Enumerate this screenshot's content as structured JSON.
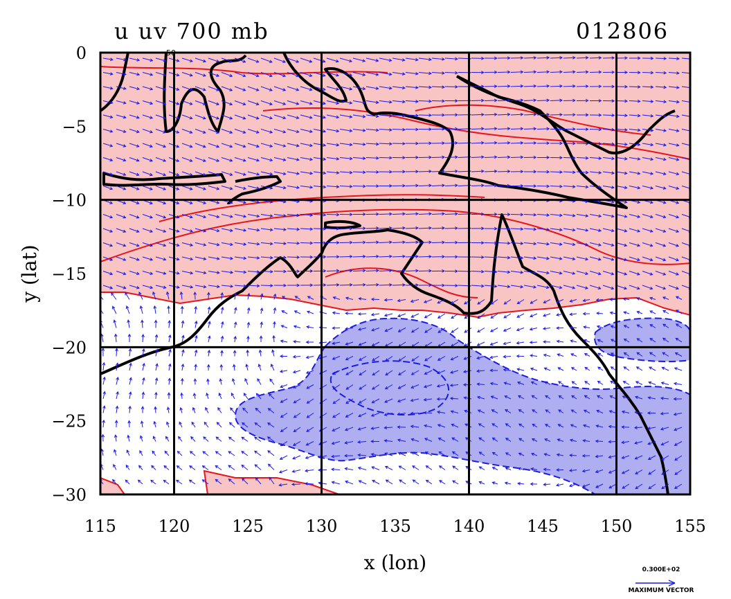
{
  "plot": {
    "title_left": "u uv 700 mb",
    "title_right": "012806",
    "small_label": "50",
    "xlabel": "x (lon)",
    "ylabel": "y (lat)",
    "xlim": [
      115,
      155
    ],
    "ylim": [
      -30,
      0
    ],
    "xticks": [
      "115",
      "120",
      "125",
      "130",
      "135",
      "140",
      "145",
      "150",
      "155"
    ],
    "yticks": [
      "0",
      "−5",
      "−10",
      "−15",
      "−20",
      "−25",
      "−30"
    ],
    "grid_lon": [
      120,
      130,
      140,
      150
    ],
    "grid_lat": [
      -10,
      -20
    ],
    "reference_vector_value": "0.300E+02",
    "reference_vector_label": "MAXIMUM VECTOR"
  },
  "colors": {
    "positive_fill": "#f8c4c4",
    "positive_contour": "#e8141c",
    "negative_fill": "#aeaef0",
    "negative_contour": "#1c1ce0",
    "coastline": "#000000",
    "vectors": "#1a1ae6"
  }
}
